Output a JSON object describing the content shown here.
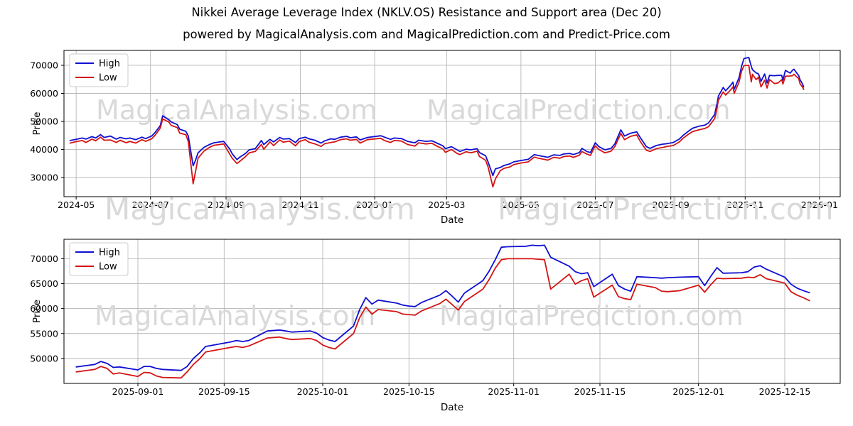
{
  "title": "Nikkei Average Leverage Index (NKLV.OS) Resistance and Support area (Dec 20)",
  "subtitle": "powered by MagicalAnalysis.com and MagicalPrediction.com and Predict-Price.com",
  "watermarks": [
    "MagicalAnalysis.com",
    "MagicalPrediction.com"
  ],
  "colors": {
    "high": "#0f0fd2",
    "low": "#d41414",
    "grid": "#b6b6b6",
    "axis": "#000000",
    "watermark": "#d9d9d9",
    "legend_border": "#cccccc",
    "text": "#000000"
  },
  "chart_data": [
    {
      "type": "line",
      "title": "",
      "xlabel": "Date",
      "ylabel": "Price",
      "grid": true,
      "legend_position": "upper left",
      "xlim": [
        "2024-04-21",
        "2026-01-18"
      ],
      "ylim": [
        23200,
        75300
      ],
      "yticks": [
        30000,
        40000,
        50000,
        60000,
        70000
      ],
      "xticks": [
        {
          "date": "2024-05-01",
          "label": "2024-05"
        },
        {
          "date": "2024-07-01",
          "label": "2024-07"
        },
        {
          "date": "2024-09-01",
          "label": "2024-09"
        },
        {
          "date": "2024-11-01",
          "label": "2024-11"
        },
        {
          "date": "2025-01-01",
          "label": "2025-01"
        },
        {
          "date": "2025-03-01",
          "label": "2025-03"
        },
        {
          "date": "2025-05-01",
          "label": "2025-05"
        },
        {
          "date": "2025-07-01",
          "label": "2025-07"
        },
        {
          "date": "2025-09-01",
          "label": "2025-09"
        },
        {
          "date": "2025-11-01",
          "label": "2025-11"
        },
        {
          "date": "2026-01-01",
          "label": "2026-01"
        }
      ],
      "x": [
        "2024-04-26",
        "2024-05-01",
        "2024-05-06",
        "2024-05-09",
        "2024-05-14",
        "2024-05-17",
        "2024-05-21",
        "2024-05-24",
        "2024-05-29",
        "2024-06-03",
        "2024-06-06",
        "2024-06-11",
        "2024-06-14",
        "2024-06-19",
        "2024-06-24",
        "2024-06-27",
        "2024-07-02",
        "2024-07-05",
        "2024-07-09",
        "2024-07-11",
        "2024-07-16",
        "2024-07-18",
        "2024-07-23",
        "2024-07-25",
        "2024-07-30",
        "2024-08-01",
        "2024-08-05",
        "2024-08-07",
        "2024-08-09",
        "2024-08-14",
        "2024-08-19",
        "2024-08-22",
        "2024-08-27",
        "2024-08-30",
        "2024-09-04",
        "2024-09-06",
        "2024-09-10",
        "2024-09-12",
        "2024-09-17",
        "2024-09-20",
        "2024-09-25",
        "2024-09-30",
        "2024-10-02",
        "2024-10-07",
        "2024-10-10",
        "2024-10-15",
        "2024-10-18",
        "2024-10-23",
        "2024-10-28",
        "2024-10-31",
        "2024-11-05",
        "2024-11-08",
        "2024-11-13",
        "2024-11-18",
        "2024-11-21",
        "2024-11-26",
        "2024-11-29",
        "2024-12-04",
        "2024-12-09",
        "2024-12-12",
        "2024-12-17",
        "2024-12-20",
        "2024-12-26",
        "2025-01-06",
        "2025-01-09",
        "2025-01-14",
        "2025-01-17",
        "2025-01-23",
        "2025-01-28",
        "2025-02-03",
        "2025-02-06",
        "2025-02-12",
        "2025-02-17",
        "2025-02-21",
        "2025-02-26",
        "2025-02-28",
        "2025-03-05",
        "2025-03-10",
        "2025-03-12",
        "2025-03-17",
        "2025-03-21",
        "2025-03-26",
        "2025-03-28",
        "2025-04-02",
        "2025-04-04",
        "2025-04-08",
        "2025-04-10",
        "2025-04-14",
        "2025-04-17",
        "2025-04-22",
        "2025-04-25",
        "2025-04-30",
        "2025-05-07",
        "2025-05-12",
        "2025-05-15",
        "2025-05-20",
        "2025-05-23",
        "2025-05-28",
        "2025-06-02",
        "2025-06-05",
        "2025-06-10",
        "2025-06-13",
        "2025-06-18",
        "2025-06-20",
        "2025-06-24",
        "2025-06-27",
        "2025-07-01",
        "2025-07-04",
        "2025-07-09",
        "2025-07-14",
        "2025-07-17",
        "2025-07-22",
        "2025-07-25",
        "2025-07-30",
        "2025-08-04",
        "2025-08-07",
        "2025-08-12",
        "2025-08-15",
        "2025-08-20",
        "2025-08-25",
        "2025-08-29",
        "2025-09-03",
        "2025-09-08",
        "2025-09-11",
        "2025-09-16",
        "2025-09-19",
        "2025-09-24",
        "2025-09-29",
        "2025-10-02",
        "2025-10-07",
        "2025-10-09",
        "2025-10-10",
        "2025-10-14",
        "2025-10-16",
        "2025-10-20",
        "2025-10-22",
        "2025-10-23",
        "2025-10-27",
        "2025-10-29",
        "2025-10-31",
        "2025-11-04",
        "2025-11-06",
        "2025-11-07",
        "2025-11-10",
        "2025-11-12",
        "2025-11-14",
        "2025-11-17",
        "2025-11-19",
        "2025-11-21",
        "2025-11-25",
        "2025-11-28",
        "2025-12-01",
        "2025-12-02",
        "2025-12-04",
        "2025-12-08",
        "2025-12-10",
        "2025-12-11",
        "2025-12-15",
        "2025-12-16",
        "2025-12-18",
        "2025-12-19"
      ],
      "series": [
        {
          "name": "High",
          "color_key": "high",
          "values": [
            43200,
            43600,
            44100,
            43700,
            44600,
            44100,
            45300,
            44300,
            44800,
            43700,
            44300,
            43800,
            44100,
            43500,
            44400,
            43900,
            44800,
            46200,
            48500,
            52000,
            50600,
            49800,
            48900,
            47200,
            46500,
            44800,
            34200,
            36200,
            38800,
            40800,
            41900,
            42400,
            42700,
            42900,
            40200,
            38500,
            36400,
            37200,
            38600,
            39900,
            40300,
            43200,
            41800,
            43600,
            42700,
            44300,
            43700,
            43900,
            42500,
            43900,
            44400,
            43800,
            43300,
            42300,
            43100,
            43800,
            43600,
            44400,
            44700,
            44200,
            44500,
            43400,
            44300,
            44900,
            44400,
            43600,
            44100,
            43900,
            42900,
            42400,
            43300,
            42900,
            43100,
            42300,
            41300,
            40300,
            41000,
            39800,
            39300,
            40100,
            39900,
            40300,
            38900,
            37800,
            35600,
            30700,
            33100,
            33600,
            34300,
            34900,
            35600,
            36000,
            36500,
            38200,
            37900,
            37500,
            37200,
            38100,
            37900,
            38400,
            38600,
            38200,
            38900,
            40400,
            39300,
            38900,
            42400,
            41000,
            39900,
            40400,
            42000,
            47000,
            44800,
            45800,
            46300,
            44200,
            41000,
            40400,
            41400,
            41900,
            42100,
            42500,
            43700,
            45000,
            46700,
            47600,
            48300,
            48700,
            49500,
            52500,
            56500,
            59000,
            62100,
            60900,
            62800,
            64000,
            61500,
            65600,
            69500,
            72400,
            72800,
            69600,
            68400,
            67300,
            66900,
            64300,
            66900,
            63700,
            66400,
            66300,
            66400,
            66400,
            64700,
            68200,
            67200,
            68300,
            68600,
            66300,
            64900,
            63400,
            62300
          ]
        },
        {
          "name": "Low",
          "color_key": "low",
          "values": [
            42300,
            42800,
            43200,
            42500,
            43700,
            43100,
            44400,
            43300,
            43400,
            42500,
            43300,
            42400,
            42900,
            42300,
            43500,
            42900,
            43800,
            45200,
            47600,
            50900,
            49800,
            48600,
            47800,
            45800,
            45300,
            42800,
            27800,
            32200,
            36900,
            39500,
            40900,
            41500,
            41800,
            42000,
            38400,
            36900,
            35000,
            35700,
            37500,
            38800,
            39300,
            41800,
            40100,
            42700,
            41400,
            43400,
            42600,
            43000,
            41300,
            42800,
            43500,
            42600,
            42000,
            41100,
            42100,
            42500,
            42700,
            43500,
            43800,
            43300,
            43600,
            42300,
            43500,
            44000,
            43200,
            42500,
            43200,
            43000,
            41800,
            41200,
            42400,
            42000,
            42200,
            41200,
            40200,
            39000,
            40000,
            38500,
            38200,
            39200,
            38800,
            39400,
            37500,
            36200,
            33800,
            26700,
            29500,
            32400,
            33300,
            33800,
            34600,
            35100,
            35600,
            37300,
            36900,
            36500,
            36200,
            37200,
            36900,
            37500,
            37700,
            37200,
            38000,
            39300,
            38400,
            37900,
            41300,
            40000,
            38800,
            39400,
            41000,
            45700,
            43500,
            44700,
            45200,
            42800,
            39700,
            39300,
            40300,
            40700,
            41100,
            41400,
            42700,
            44000,
            45600,
            46400,
            47000,
            47500,
            48200,
            51000,
            55000,
            57500,
            60500,
            59400,
            61200,
            62300,
            60000,
            64000,
            67800,
            69900,
            70000,
            64100,
            66800,
            64900,
            65800,
            62300,
            64700,
            61900,
            64900,
            63500,
            63700,
            64900,
            63300,
            66100,
            66200,
            66300,
            66800,
            65200,
            63500,
            62300,
            61400
          ]
        }
      ]
    },
    {
      "type": "line",
      "title": "",
      "xlabel": "Date",
      "ylabel": "Price",
      "grid": true,
      "legend_position": "upper left",
      "xlim": [
        "2025-08-20",
        "2025-12-24"
      ],
      "ylim": [
        45000,
        73900
      ],
      "yticks": [
        50000,
        55000,
        60000,
        65000,
        70000
      ],
      "xticks": [
        {
          "date": "2025-09-01",
          "label": "2025-09-01"
        },
        {
          "date": "2025-09-15",
          "label": "2025-09-15"
        },
        {
          "date": "2025-10-01",
          "label": "2025-10-01"
        },
        {
          "date": "2025-10-15",
          "label": "2025-10-15"
        },
        {
          "date": "2025-11-01",
          "label": "2025-11-01"
        },
        {
          "date": "2025-11-15",
          "label": "2025-11-15"
        },
        {
          "date": "2025-12-01",
          "label": "2025-12-01"
        },
        {
          "date": "2025-12-15",
          "label": "2025-12-15"
        }
      ],
      "x": [
        "2025-08-22",
        "2025-08-25",
        "2025-08-26",
        "2025-08-27",
        "2025-08-28",
        "2025-08-29",
        "2025-09-01",
        "2025-09-02",
        "2025-09-03",
        "2025-09-04",
        "2025-09-05",
        "2025-09-08",
        "2025-09-09",
        "2025-09-10",
        "2025-09-11",
        "2025-09-12",
        "2025-09-16",
        "2025-09-17",
        "2025-09-18",
        "2025-09-19",
        "2025-09-22",
        "2025-09-24",
        "2025-09-25",
        "2025-09-26",
        "2025-09-29",
        "2025-09-30",
        "2025-10-01",
        "2025-10-02",
        "2025-10-03",
        "2025-10-06",
        "2025-10-07",
        "2025-10-08",
        "2025-10-09",
        "2025-10-10",
        "2025-10-13",
        "2025-10-14",
        "2025-10-15",
        "2025-10-16",
        "2025-10-17",
        "2025-10-20",
        "2025-10-21",
        "2025-10-22",
        "2025-10-23",
        "2025-10-24",
        "2025-10-27",
        "2025-10-28",
        "2025-10-29",
        "2025-10-30",
        "2025-10-31",
        "2025-11-03",
        "2025-11-04",
        "2025-11-05",
        "2025-11-06",
        "2025-11-07",
        "2025-11-10",
        "2025-11-11",
        "2025-11-12",
        "2025-11-13",
        "2025-11-14",
        "2025-11-17",
        "2025-11-18",
        "2025-11-19",
        "2025-11-20",
        "2025-11-21",
        "2025-11-24",
        "2025-11-25",
        "2025-11-26",
        "2025-11-28",
        "2025-12-01",
        "2025-12-02",
        "2025-12-03",
        "2025-12-04",
        "2025-12-05",
        "2025-12-08",
        "2025-12-09",
        "2025-12-10",
        "2025-12-11",
        "2025-12-12",
        "2025-12-15",
        "2025-12-16",
        "2025-12-17",
        "2025-12-18",
        "2025-12-19"
      ],
      "series": [
        {
          "name": "High",
          "color_key": "high",
          "values": [
            48300,
            48800,
            49400,
            49000,
            48200,
            48300,
            47700,
            48400,
            48400,
            48000,
            47800,
            47600,
            48400,
            50000,
            51100,
            52400,
            53300,
            53600,
            53400,
            53600,
            55500,
            55700,
            55500,
            55300,
            55500,
            55100,
            54200,
            53700,
            53400,
            56500,
            59800,
            62200,
            60900,
            61700,
            61100,
            60700,
            60500,
            60400,
            61200,
            62700,
            63600,
            62500,
            61300,
            63100,
            65600,
            67500,
            69800,
            72300,
            72400,
            72500,
            72700,
            72600,
            72700,
            70300,
            68500,
            67400,
            67000,
            67200,
            64400,
            66900,
            64600,
            63900,
            63500,
            66400,
            66200,
            66100,
            66200,
            66300,
            66400,
            64600,
            66500,
            68200,
            67100,
            67200,
            67400,
            68300,
            68600,
            67900,
            66300,
            64900,
            64100,
            63600,
            63200
          ]
        },
        {
          "name": "Low",
          "color_key": "low",
          "values": [
            47300,
            47800,
            48400,
            48000,
            46900,
            47100,
            46400,
            47200,
            47100,
            46500,
            46200,
            46100,
            47300,
            48800,
            49900,
            51300,
            52200,
            52400,
            52200,
            52500,
            54100,
            54300,
            54000,
            53800,
            54000,
            53600,
            52700,
            52200,
            51900,
            55000,
            58200,
            60300,
            58900,
            59800,
            59400,
            58900,
            58800,
            58700,
            59500,
            61000,
            61900,
            60800,
            59700,
            61400,
            63900,
            65800,
            68100,
            69800,
            70000,
            70000,
            70000,
            69900,
            69800,
            63900,
            66900,
            64900,
            65600,
            66000,
            62300,
            64700,
            62400,
            62000,
            61800,
            64900,
            64200,
            63500,
            63400,
            63600,
            64700,
            63300,
            64800,
            66100,
            66000,
            66100,
            66300,
            66200,
            66800,
            66000,
            65100,
            63400,
            62700,
            62200,
            61600
          ]
        }
      ]
    }
  ]
}
